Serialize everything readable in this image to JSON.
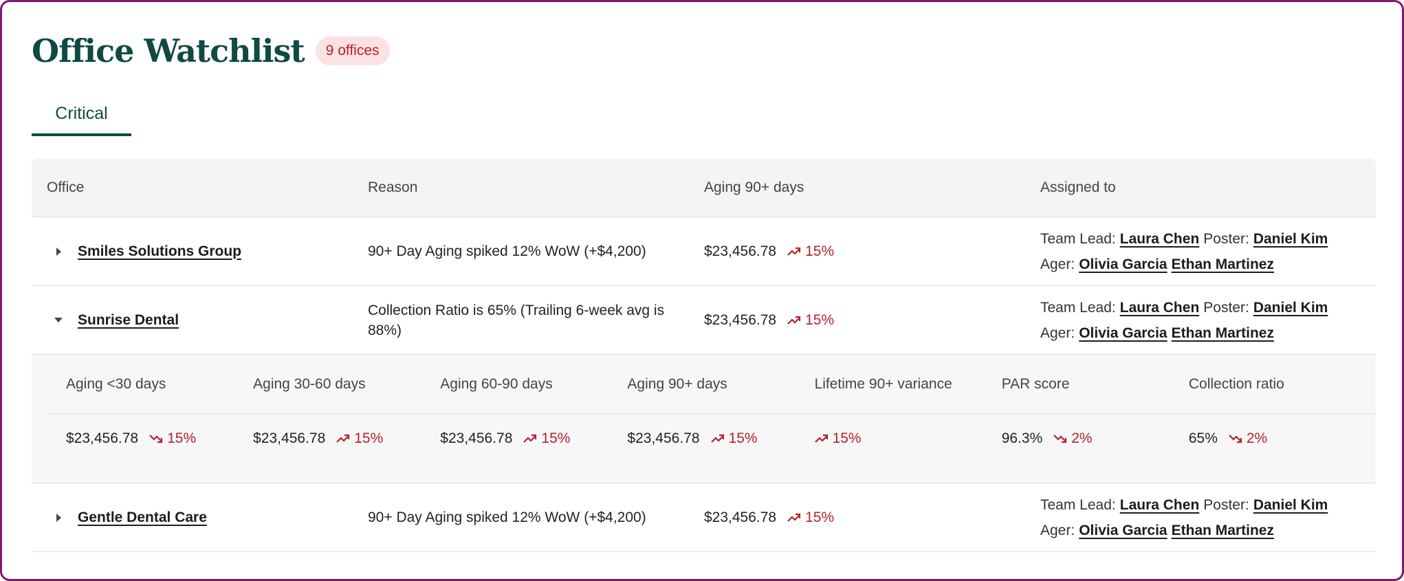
{
  "header": {
    "title": "Office Watchlist",
    "badge": "9 offices"
  },
  "tabs": [
    {
      "label": "Critical",
      "active": true
    }
  ],
  "colors": {
    "brand": "#0f4a44",
    "alert": "#b3222c",
    "frame": "#7d1a6e"
  },
  "table": {
    "columns": [
      "Office",
      "Reason",
      "Aging 90+ days",
      "Assigned to"
    ],
    "rows": [
      {
        "office": "Smiles Solutions Group",
        "expanded": false,
        "reason": "90+ Day Aging spiked 12% WoW (+$4,200)",
        "aging": "$23,456.78",
        "trend": "15%",
        "trend_direction": "up",
        "assigned": {
          "team_lead_label": "Team Lead:",
          "team_lead": "Laura Chen",
          "poster_label": "Poster:",
          "poster": "Daniel Kim",
          "ager_label": "Ager:",
          "agers": [
            "Olivia Garcia",
            "Ethan Martinez"
          ]
        }
      },
      {
        "office": "Sunrise Dental",
        "expanded": true,
        "reason": "Collection Ratio is 65% (Trailing 6-week avg is 88%)",
        "aging": "$23,456.78",
        "trend": "15%",
        "trend_direction": "up",
        "assigned": {
          "team_lead_label": "Team Lead:",
          "team_lead": "Laura Chen",
          "poster_label": "Poster:",
          "poster": "Daniel Kim",
          "ager_label": "Ager:",
          "agers": [
            "Olivia Garcia",
            "Ethan Martinez"
          ]
        },
        "details": {
          "columns": [
            "Aging <30 days",
            "Aging 30-60 days",
            "Aging 60-90 days",
            "Aging 90+ days",
            "Lifetime 90+ variance",
            "PAR score",
            "Collection ratio"
          ],
          "values": [
            {
              "value": "$23,456.78",
              "trend": "15%",
              "direction": "down"
            },
            {
              "value": "$23,456.78",
              "trend": "15%",
              "direction": "up"
            },
            {
              "value": "$23,456.78",
              "trend": "15%",
              "direction": "up"
            },
            {
              "value": "$23,456.78",
              "trend": "15%",
              "direction": "up"
            },
            {
              "value": "",
              "trend": "15%",
              "direction": "up"
            },
            {
              "value": "96.3%",
              "trend": "2%",
              "direction": "down"
            },
            {
              "value": "65%",
              "trend": "2%",
              "direction": "down"
            }
          ]
        }
      },
      {
        "office": "Gentle Dental Care",
        "expanded": false,
        "reason": "90+ Day Aging spiked 12% WoW (+$4,200)",
        "aging": "$23,456.78",
        "trend": "15%",
        "trend_direction": "up",
        "assigned": {
          "team_lead_label": "Team Lead:",
          "team_lead": "Laura Chen",
          "poster_label": "Poster:",
          "poster": "Daniel Kim",
          "ager_label": "Ager:",
          "agers": [
            "Olivia Garcia",
            "Ethan Martinez"
          ]
        }
      }
    ]
  }
}
